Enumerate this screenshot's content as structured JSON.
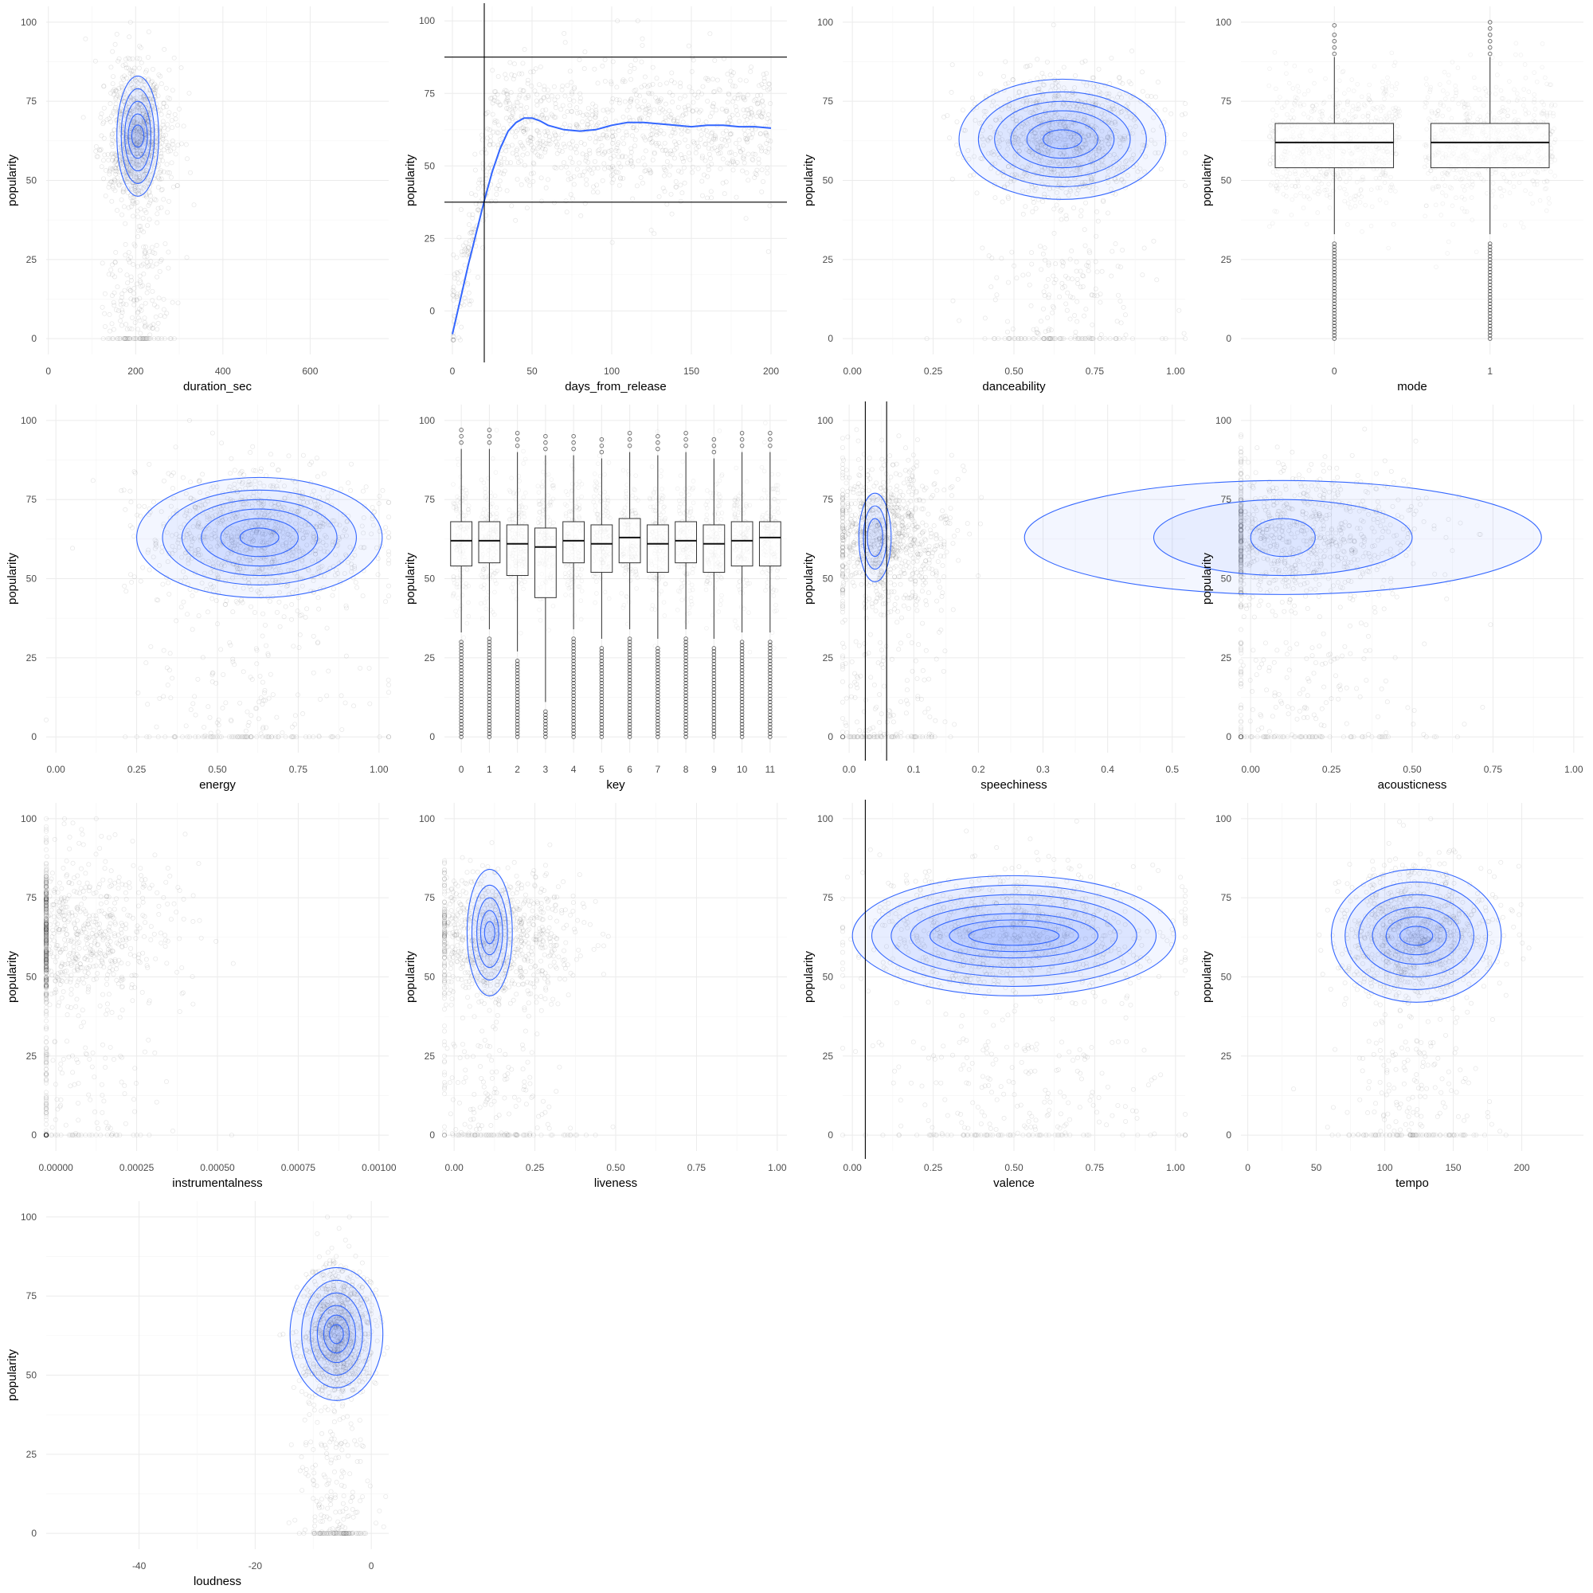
{
  "chart_data": [
    {
      "type": "scatter",
      "xlabel": "duration_sec",
      "ylabel": "popularity",
      "xlim": [
        -5,
        780
      ],
      "ylim": [
        -5,
        105
      ],
      "xticks": [
        0,
        200,
        400,
        600
      ],
      "xtick_labels": [
        "0",
        "200",
        "400",
        "600"
      ],
      "yticks": [
        0,
        25,
        50,
        75,
        100
      ],
      "grid": true,
      "point_cloud": {
        "center_x": 205,
        "spread_x": 38,
        "center_y": 63,
        "spread_y": 12,
        "low_tail_range_x": [
          70,
          380
        ]
      },
      "contour": {
        "color": "#3366ff",
        "center": [
          205,
          64
        ],
        "radius_x": [
          48,
          38,
          30,
          22,
          14
        ],
        "radius_y": [
          19,
          15,
          11,
          7,
          3.5
        ]
      },
      "annotation_points": [],
      "notes": "points at alpha 0.05, 2D density contours"
    },
    {
      "type": "scatter",
      "xlabel": "days_from_release",
      "ylabel": "popularity",
      "xlim": [
        -5,
        210
      ],
      "ylim": [
        -15,
        105
      ],
      "xticks": [
        0,
        50,
        100,
        150,
        200
      ],
      "xtick_labels": [
        "0",
        "50",
        "100",
        "150",
        "200"
      ],
      "yticks": [
        0,
        25,
        50,
        75,
        100
      ],
      "grid": true,
      "smooth_line": {
        "color": "#3366ff",
        "x": [
          0,
          5,
          10,
          15,
          20,
          25,
          30,
          35,
          40,
          45,
          50,
          55,
          60,
          70,
          80,
          90,
          100,
          110,
          120,
          130,
          140,
          150,
          160,
          170,
          180,
          190,
          200
        ],
        "y": [
          -8,
          4,
          16,
          27,
          38,
          48,
          56,
          62,
          65,
          66.5,
          66.5,
          65.5,
          64,
          62.5,
          62,
          62.5,
          64,
          65,
          65,
          64.5,
          64,
          63.5,
          64,
          64,
          63.5,
          63.5,
          63
        ]
      },
      "hlines": [
        87.5,
        37.5
      ],
      "vlines": [
        20
      ],
      "point_cloud": {
        "range_x": [
          0,
          200
        ],
        "center_y": 63,
        "spread_y": 12
      },
      "notes": "loess smooth with reference lines"
    },
    {
      "type": "scatter",
      "xlabel": "danceability",
      "ylabel": "popularity",
      "xlim": [
        -0.03,
        1.03
      ],
      "ylim": [
        -5,
        105
      ],
      "xticks": [
        0,
        0.25,
        0.5,
        0.75,
        1.0
      ],
      "xtick_labels": [
        "0.00",
        "0.25",
        "0.50",
        "0.75",
        "1.00"
      ],
      "yticks": [
        0,
        25,
        50,
        75,
        100
      ],
      "grid": true,
      "point_cloud": {
        "center_x": 0.65,
        "spread_x": 0.13,
        "center_y": 63,
        "spread_y": 11
      },
      "contour": {
        "color": "#3366ff",
        "center": [
          0.65,
          63
        ],
        "radius_x": [
          0.32,
          0.26,
          0.21,
          0.16,
          0.11,
          0.06
        ],
        "radius_y": [
          19,
          15,
          12,
          9,
          6,
          3
        ]
      }
    },
    {
      "type": "box",
      "xlabel": "mode",
      "ylabel": "popularity",
      "categories": [
        "0",
        "1"
      ],
      "ylim": [
        -5,
        105
      ],
      "yticks": [
        0,
        25,
        50,
        75,
        100
      ],
      "grid": true,
      "boxes": [
        {
          "category": "0",
          "q1": 54,
          "median": 62,
          "q3": 68,
          "whisker_low": 33,
          "whisker_high": 89,
          "outliers_high": [
            90,
            92,
            94,
            96,
            99
          ],
          "outliers_low_range": [
            0,
            30
          ]
        },
        {
          "category": "1",
          "q1": 54,
          "median": 62,
          "q3": 68,
          "whisker_low": 33,
          "whisker_high": 89,
          "outliers_high": [
            90,
            92,
            94,
            96,
            98,
            100
          ],
          "outliers_low_range": [
            0,
            30
          ]
        }
      ],
      "notes": "jittered points behind boxes"
    },
    {
      "type": "scatter",
      "xlabel": "energy",
      "ylabel": "popularity",
      "xlim": [
        -0.03,
        1.03
      ],
      "ylim": [
        -5,
        105
      ],
      "xticks": [
        0,
        0.25,
        0.5,
        0.75,
        1.0
      ],
      "xtick_labels": [
        "0.00",
        "0.25",
        "0.50",
        "0.75",
        "1.00"
      ],
      "yticks": [
        0,
        25,
        50,
        75,
        100
      ],
      "grid": true,
      "point_cloud": {
        "center_x": 0.62,
        "spread_x": 0.18,
        "center_y": 63,
        "spread_y": 11
      },
      "contour": {
        "color": "#3366ff",
        "center": [
          0.63,
          63
        ],
        "radius_x": [
          0.38,
          0.3,
          0.24,
          0.18,
          0.12,
          0.06
        ],
        "radius_y": [
          19,
          15,
          12,
          9,
          6,
          3
        ]
      }
    },
    {
      "type": "box",
      "xlabel": "key",
      "ylabel": "popularity",
      "categories": [
        "0",
        "1",
        "2",
        "3",
        "4",
        "5",
        "6",
        "7",
        "8",
        "9",
        "10",
        "11"
      ],
      "ylim": [
        -5,
        105
      ],
      "yticks": [
        0,
        25,
        50,
        75,
        100
      ],
      "grid": true,
      "boxes": [
        {
          "category": "0",
          "q1": 54,
          "median": 62,
          "q3": 68,
          "whisker_low": 33,
          "whisker_high": 91
        },
        {
          "category": "1",
          "q1": 55,
          "median": 62,
          "q3": 68,
          "whisker_low": 34,
          "whisker_high": 91
        },
        {
          "category": "2",
          "q1": 51,
          "median": 61,
          "q3": 67,
          "whisker_low": 27,
          "whisker_high": 90
        },
        {
          "category": "3",
          "q1": 44,
          "median": 60,
          "q3": 66,
          "whisker_low": 11,
          "whisker_high": 89
        },
        {
          "category": "4",
          "q1": 55,
          "median": 62,
          "q3": 68,
          "whisker_low": 34,
          "whisker_high": 89
        },
        {
          "category": "5",
          "q1": 52,
          "median": 61,
          "q3": 67,
          "whisker_low": 31,
          "whisker_high": 88
        },
        {
          "category": "6",
          "q1": 55,
          "median": 63,
          "q3": 69,
          "whisker_low": 34,
          "whisker_high": 90
        },
        {
          "category": "7",
          "q1": 52,
          "median": 61,
          "q3": 67,
          "whisker_low": 31,
          "whisker_high": 89
        },
        {
          "category": "8",
          "q1": 55,
          "median": 62,
          "q3": 68,
          "whisker_low": 34,
          "whisker_high": 90
        },
        {
          "category": "9",
          "q1": 52,
          "median": 61,
          "q3": 67,
          "whisker_low": 31,
          "whisker_high": 88
        },
        {
          "category": "10",
          "q1": 54,
          "median": 62,
          "q3": 68,
          "whisker_low": 33,
          "whisker_high": 90
        },
        {
          "category": "11",
          "q1": 54,
          "median": 63,
          "q3": 68,
          "whisker_low": 33,
          "whisker_high": 90
        }
      ]
    },
    {
      "type": "scatter",
      "xlabel": "speechiness",
      "ylabel": "popularity",
      "xlim": [
        -0.01,
        0.52
      ],
      "ylim": [
        -5,
        105
      ],
      "xticks": [
        0,
        0.1,
        0.2,
        0.3,
        0.4,
        0.5
      ],
      "xtick_labels": [
        "0.0",
        "0.1",
        "0.2",
        "0.3",
        "0.4",
        "0.5"
      ],
      "yticks": [
        0,
        25,
        50,
        75,
        100
      ],
      "grid": true,
      "vlines": [
        0.025,
        0.058
      ],
      "point_cloud": {
        "center_x": 0.05,
        "spread_x": 0.05,
        "center_y": 63,
        "spread_y": 11
      },
      "contour": {
        "color": "#3366ff",
        "center": [
          0.04,
          63
        ],
        "radius_x": [
          0.025,
          0.018,
          0.012
        ],
        "radius_y": [
          14,
          10,
          6
        ]
      }
    },
    {
      "type": "scatter",
      "xlabel": "acousticness",
      "ylabel": "popularity",
      "xlim": [
        -0.03,
        1.03
      ],
      "ylim": [
        -5,
        105
      ],
      "xticks": [
        0,
        0.25,
        0.5,
        0.75,
        1.0
      ],
      "xtick_labels": [
        "0.00",
        "0.25",
        "0.50",
        "0.75",
        "1.00"
      ],
      "yticks": [
        0,
        25,
        50,
        75,
        100
      ],
      "grid": true,
      "point_cloud": {
        "center_x": 0.12,
        "spread_x": 0.2,
        "center_y": 63,
        "spread_y": 11
      },
      "contour": {
        "color": "#3366ff",
        "center": [
          0.1,
          63
        ],
        "radius_x": [
          0.8,
          0.4,
          0.1
        ],
        "radius_y": [
          18,
          12,
          6
        ]
      }
    },
    {
      "type": "scatter",
      "xlabel": "instrumentalness",
      "ylabel": "popularity",
      "xlim": [
        -3e-05,
        0.00103
      ],
      "ylim": [
        -5,
        105
      ],
      "xticks": [
        0,
        0.00025,
        0.0005,
        0.00075,
        0.001
      ],
      "xtick_labels": [
        "0.00000",
        "0.00025",
        "0.00050",
        "0.00075",
        "0.00100"
      ],
      "yticks": [
        0,
        25,
        50,
        75,
        100
      ],
      "grid": true,
      "point_cloud": {
        "center_x": 0.0,
        "spread_x": 0.00018,
        "center_y": 63,
        "spread_y": 12
      }
    },
    {
      "type": "scatter",
      "xlabel": "liveness",
      "ylabel": "popularity",
      "xlim": [
        -0.03,
        1.03
      ],
      "ylim": [
        -5,
        105
      ],
      "xticks": [
        0,
        0.25,
        0.5,
        0.75,
        1.0
      ],
      "xtick_labels": [
        "0.00",
        "0.25",
        "0.50",
        "0.75",
        "1.00"
      ],
      "yticks": [
        0,
        25,
        50,
        75,
        100
      ],
      "grid": true,
      "point_cloud": {
        "center_x": 0.12,
        "spread_x": 0.12,
        "center_y": 63,
        "spread_y": 11
      },
      "contour": {
        "color": "#3366ff",
        "center": [
          0.11,
          64
        ],
        "radius_x": [
          0.07,
          0.055,
          0.04,
          0.028,
          0.016
        ],
        "radius_y": [
          20,
          15,
          11,
          7,
          3.5
        ]
      }
    },
    {
      "type": "scatter",
      "xlabel": "valence",
      "ylabel": "popularity",
      "xlim": [
        -0.03,
        1.03
      ],
      "ylim": [
        -5,
        105
      ],
      "xticks": [
        0,
        0.25,
        0.5,
        0.75,
        1.0
      ],
      "xtick_labels": [
        "0.00",
        "0.25",
        "0.50",
        "0.75",
        "1.00"
      ],
      "yticks": [
        0,
        25,
        50,
        75,
        100
      ],
      "grid": true,
      "vlines": [
        0.04
      ],
      "point_cloud": {
        "center_x": 0.5,
        "spread_x": 0.24,
        "center_y": 63,
        "spread_y": 11
      },
      "contour": {
        "color": "#3366ff",
        "center": [
          0.5,
          63
        ],
        "radius_x": [
          0.5,
          0.44,
          0.38,
          0.32,
          0.26,
          0.2,
          0.14
        ],
        "radius_y": [
          19,
          16,
          13,
          10,
          7,
          5,
          3
        ]
      }
    },
    {
      "type": "scatter",
      "xlabel": "tempo",
      "ylabel": "popularity",
      "xlim": [
        -5,
        245
      ],
      "ylim": [
        -5,
        105
      ],
      "xticks": [
        0,
        50,
        100,
        150,
        200
      ],
      "xtick_labels": [
        "0",
        "50",
        "100",
        "150",
        "200"
      ],
      "yticks": [
        0,
        25,
        50,
        75,
        100
      ],
      "grid": true,
      "point_cloud": {
        "center_x": 122,
        "spread_x": 28,
        "center_y": 63,
        "spread_y": 11
      },
      "contour": {
        "color": "#3366ff",
        "center": [
          123,
          63
        ],
        "radius_x": [
          62,
          52,
          42,
          32,
          22,
          12
        ],
        "radius_y": [
          21,
          17,
          13,
          9,
          6,
          3
        ]
      }
    },
    {
      "type": "scatter",
      "xlabel": "loudness",
      "ylabel": "popularity",
      "xlim": [
        -56,
        3
      ],
      "ylim": [
        -5,
        105
      ],
      "xticks": [
        -40,
        -20,
        0
      ],
      "xtick_labels": [
        "-40",
        "-20",
        "0"
      ],
      "yticks": [
        0,
        25,
        50,
        75,
        100
      ],
      "grid": true,
      "point_cloud": {
        "center_x": -6,
        "spread_x": 3,
        "center_y": 63,
        "spread_y": 11
      },
      "contour": {
        "color": "#3366ff",
        "center": [
          -6,
          63
        ],
        "radius_x": [
          8,
          6,
          4.5,
          3.3,
          2.2,
          1.2
        ],
        "radius_y": [
          21,
          17,
          13,
          9,
          6,
          3
        ]
      }
    }
  ],
  "layout": {
    "columns": 4,
    "rows": 4
  },
  "y_tick_labels": [
    "0",
    "25",
    "50",
    "75",
    "100"
  ]
}
